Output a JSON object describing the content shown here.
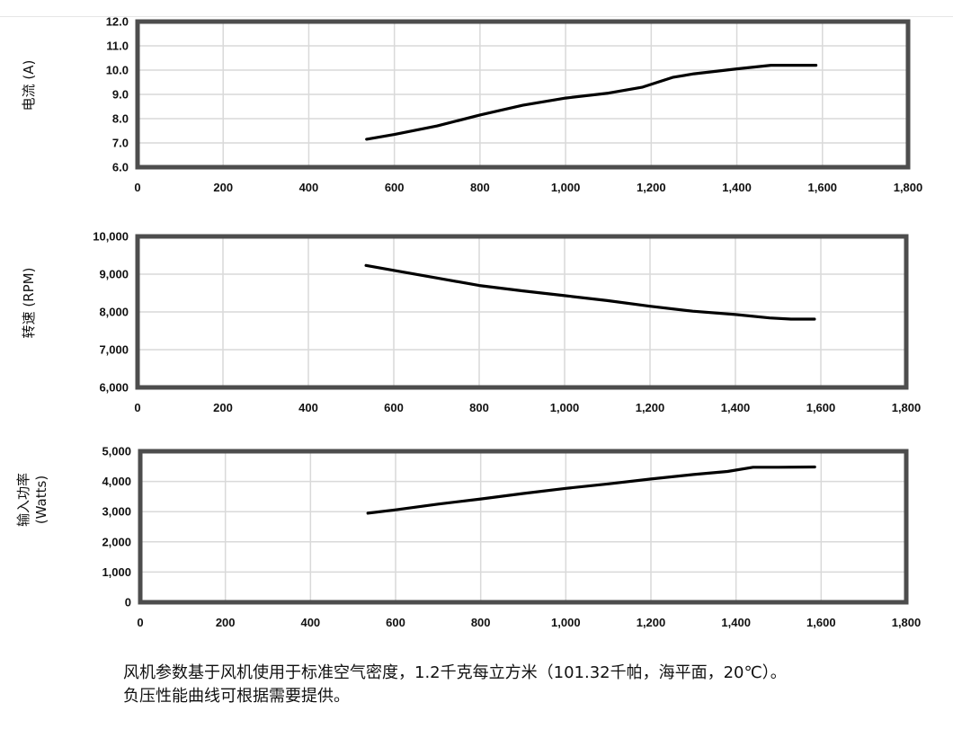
{
  "chart_data": [
    {
      "type": "line",
      "ylabel": "电流 (A)",
      "ylim": [
        6.0,
        12.0
      ],
      "xlim": [
        0,
        1800
      ],
      "ytick_labels": [
        "6.0",
        "7.0",
        "8.0",
        "9.0",
        "10.0",
        "11.0",
        "12.0"
      ],
      "xtick_labels": [
        "0",
        "200",
        "400",
        "600",
        "800",
        "1,000",
        "1,200",
        "1,400",
        "1,600",
        "1,800"
      ],
      "grid": true,
      "series": [
        {
          "x": [
            535,
            600,
            700,
            800,
            900,
            1000,
            1100,
            1180,
            1250,
            1300,
            1400,
            1480,
            1530,
            1585
          ],
          "y": [
            7.15,
            7.35,
            7.7,
            8.15,
            8.55,
            8.85,
            9.05,
            9.3,
            9.7,
            9.85,
            10.05,
            10.2,
            10.2,
            10.2
          ]
        }
      ]
    },
    {
      "type": "line",
      "ylabel": "转速 (RPM)",
      "ylim": [
        6000,
        10000
      ],
      "xlim": [
        0,
        1800
      ],
      "ytick_labels": [
        "6,000",
        "7,000",
        "8,000",
        "9,000",
        "10,000"
      ],
      "xtick_labels": [
        "0",
        "200",
        "400",
        "600",
        "800",
        "1,000",
        "1,200",
        "1,400",
        "1,600",
        "1,800"
      ],
      "grid": true,
      "series": [
        {
          "x": [
            535,
            600,
            700,
            800,
            900,
            1000,
            1100,
            1200,
            1300,
            1400,
            1480,
            1530,
            1585
          ],
          "y": [
            9230,
            9100,
            8900,
            8700,
            8560,
            8430,
            8300,
            8150,
            8020,
            7930,
            7840,
            7810,
            7810
          ]
        }
      ]
    },
    {
      "type": "line",
      "ylabel": "输入功率",
      "ylabel2": "(Watts)",
      "ylim": [
        0,
        5000
      ],
      "xlim": [
        0,
        1800
      ],
      "ytick_labels": [
        "0",
        "1,000",
        "2,000",
        "3,000",
        "4,000",
        "5,000"
      ],
      "xtick_labels": [
        "0",
        "200",
        "400",
        "600",
        "800",
        "1,000",
        "1,200",
        "1,400",
        "1,600",
        "1,800"
      ],
      "grid": true,
      "series": [
        {
          "x": [
            535,
            600,
            700,
            800,
            900,
            1000,
            1100,
            1200,
            1300,
            1380,
            1440,
            1500,
            1585
          ],
          "y": [
            2950,
            3060,
            3250,
            3420,
            3600,
            3770,
            3920,
            4080,
            4230,
            4330,
            4470,
            4470,
            4480
          ]
        }
      ]
    }
  ],
  "footnote": {
    "line1": "风机参数基于风机使用于标准空气密度，1.2千克每立方米（101.32千帕，海平面，20℃）。",
    "line2": "负压性能曲线可根据需要提供。"
  },
  "colors": {
    "frame": "#4d4d4d",
    "grid": "#d9d9d9",
    "line": "#000000"
  }
}
